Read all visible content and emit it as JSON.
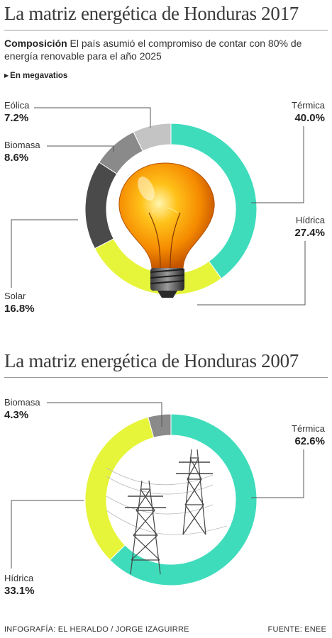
{
  "colors": {
    "termica": "#3fdcbc",
    "hidrica": "#e6f53a",
    "solar": "#4a4a4a",
    "biomasa": "#8a8a8a",
    "eolica": "#c4c4c4",
    "leader": "#555555"
  },
  "icons": {
    "chart1_center": "light-bulb-icon",
    "chart2_center": "power-tower-icon"
  },
  "intro": {
    "lead": "Composición",
    "text": " El país asumió el compromiso de contar con 80% de energía renovable para el año 2025"
  },
  "unit_label": "En megavatios",
  "chart_data": [
    {
      "type": "pie",
      "title": "La matriz energética de Honduras 2017",
      "unit": "En megavatios",
      "categories": [
        "Térmica",
        "Hídrica",
        "Solar",
        "Biomasa",
        "Eólica"
      ],
      "values": [
        40.0,
        27.4,
        16.8,
        8.6,
        7.2
      ],
      "labels": [
        "40.0%",
        "27.4%",
        "16.8%",
        "8.6%",
        "7.2%"
      ]
    },
    {
      "type": "pie",
      "title": "La matriz energética de Honduras 2007",
      "categories": [
        "Térmica",
        "Hídrica",
        "Biomasa"
      ],
      "values": [
        62.6,
        33.1,
        4.3
      ],
      "labels": [
        "62.6%",
        "33.1%",
        "4.3%"
      ]
    }
  ],
  "footer": {
    "credit": "INFOGRAFÍA: EL HERALDO / JORGE IZAGUIRRE",
    "source": "FUENTE: ENEE"
  }
}
